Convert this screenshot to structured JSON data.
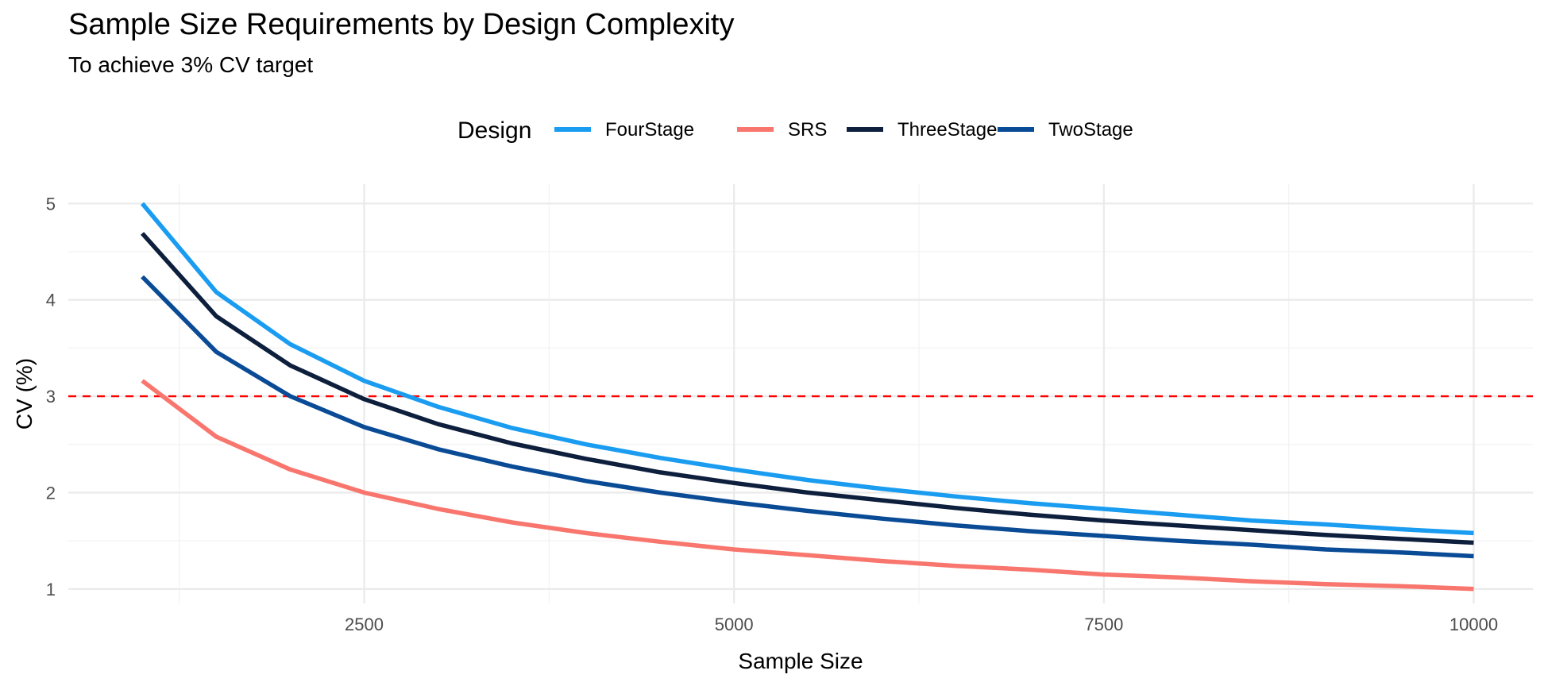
{
  "chart_data": {
    "type": "line",
    "title": "Sample Size Requirements by Design Complexity",
    "subtitle": "To achieve 3% CV target",
    "xlabel": "Sample Size",
    "ylabel": "CV (%)",
    "xlim": [
      500,
      10400
    ],
    "ylim": [
      0.85,
      5.2
    ],
    "x_ticks": [
      2500,
      5000,
      7500,
      10000
    ],
    "y_ticks": [
      1,
      2,
      3,
      4,
      5
    ],
    "grid": true,
    "legend": {
      "title": "Design",
      "position": "top"
    },
    "reference_line": {
      "y": 3,
      "color": "#ff0000",
      "style": "dashed"
    },
    "x": [
      1000,
      1500,
      2000,
      2500,
      3000,
      3500,
      4000,
      4500,
      5000,
      5500,
      6000,
      6500,
      7000,
      7500,
      8000,
      8500,
      9000,
      9500,
      10000
    ],
    "series": [
      {
        "name": "FourStage",
        "color": "#1a9cf0",
        "values": [
          5.0,
          4.08,
          3.54,
          3.16,
          2.89,
          2.67,
          2.5,
          2.36,
          2.24,
          2.13,
          2.04,
          1.96,
          1.89,
          1.83,
          1.77,
          1.71,
          1.67,
          1.62,
          1.58
        ]
      },
      {
        "name": "SRS",
        "color": "#f8766d",
        "values": [
          3.16,
          2.58,
          2.24,
          2.0,
          1.83,
          1.69,
          1.58,
          1.49,
          1.41,
          1.35,
          1.29,
          1.24,
          1.2,
          1.15,
          1.12,
          1.08,
          1.05,
          1.03,
          1.0
        ]
      },
      {
        "name": "ThreeStage",
        "color": "#0d1f3c",
        "values": [
          4.69,
          3.83,
          3.32,
          2.97,
          2.71,
          2.51,
          2.35,
          2.21,
          2.1,
          2.0,
          1.92,
          1.84,
          1.77,
          1.71,
          1.66,
          1.61,
          1.56,
          1.52,
          1.48
        ]
      },
      {
        "name": "TwoStage",
        "color": "#0a4b96",
        "values": [
          4.24,
          3.46,
          3.0,
          2.68,
          2.45,
          2.27,
          2.12,
          2.0,
          1.9,
          1.81,
          1.73,
          1.66,
          1.6,
          1.55,
          1.5,
          1.46,
          1.41,
          1.38,
          1.34
        ]
      }
    ]
  }
}
